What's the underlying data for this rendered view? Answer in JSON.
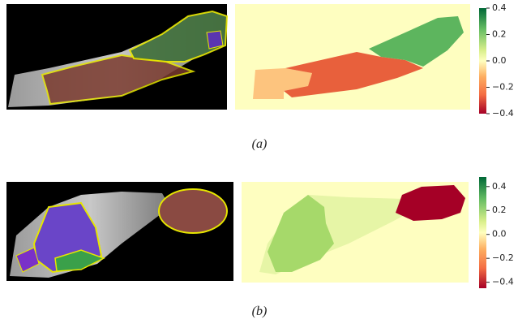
{
  "panels": [
    {
      "caption": "(a)",
      "colorbar": {
        "lim": [
          -0.4,
          0.4
        ],
        "ticks": [
          0.4,
          0.2,
          {
            "value": 0,
            "label": "0.0"
          },
          {
            "value": -0.2,
            "label": "−0.2"
          },
          {
            "value": -0.4,
            "label": "−0.4"
          }
        ]
      }
    },
    {
      "caption": "(b)",
      "colorbar": {
        "lim": [
          -0.45,
          0.48
        ],
        "ticks": [
          0.4,
          0.2,
          {
            "value": 0,
            "label": "0.0"
          },
          {
            "value": -0.2,
            "label": "−0.2"
          },
          {
            "value": -0.4,
            "label": "−0.4"
          }
        ]
      }
    }
  ]
}
